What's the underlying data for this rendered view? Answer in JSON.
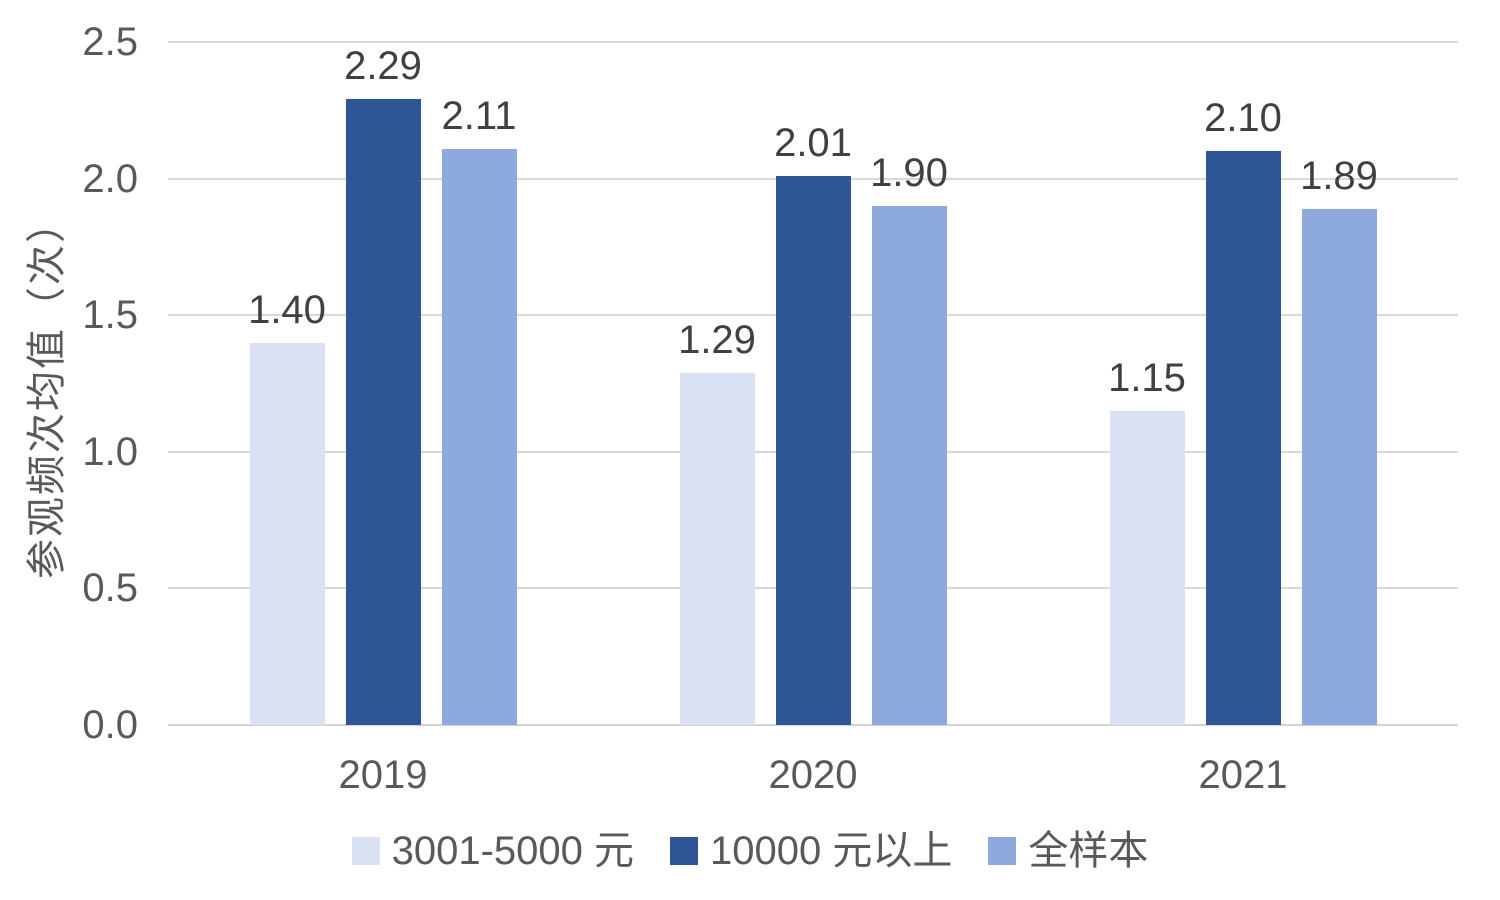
{
  "chart_data": {
    "type": "bar",
    "title": "",
    "categories": [
      "2019",
      "2020",
      "2021"
    ],
    "series": [
      {
        "name": "3001-5000 元",
        "color": "#D9E1F2",
        "values": [
          1.4,
          1.29,
          1.15
        ],
        "labels": [
          "1.40",
          "1.29",
          "1.15"
        ]
      },
      {
        "name": "10000 元以上",
        "color": "#2E5596",
        "values": [
          2.29,
          2.01,
          2.1
        ],
        "labels": [
          "2.29",
          "2.01",
          "2.10"
        ]
      },
      {
        "name": "全样本",
        "color": "#8EA9DB",
        "values": [
          2.11,
          1.9,
          1.89
        ],
        "labels": [
          "2.11",
          "1.90",
          "1.89"
        ]
      }
    ],
    "xlabel": "",
    "ylabel": "参观频次均值（次）",
    "ylim": [
      0,
      2.5
    ],
    "ytick_labels": [
      "0.0",
      "0.5",
      "1.0",
      "1.5",
      "2.0",
      "2.5"
    ],
    "ytick_values": [
      0.0,
      0.5,
      1.0,
      1.5,
      2.0,
      2.5
    ],
    "grid": true,
    "legend_position": "bottom"
  },
  "style": {
    "background": "#FFFFFF",
    "grid_color": "#D9D9D9",
    "baseline_color": "#D3D3D3",
    "tick_text_color": "#595959",
    "value_label_color": "#404040",
    "legend_text_color": "#595959",
    "axis_title_color": "#595959"
  }
}
